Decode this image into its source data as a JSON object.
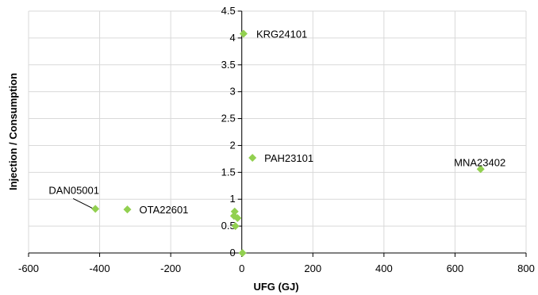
{
  "chart_data": {
    "type": "scatter",
    "title": "",
    "xlabel": "UFG (GJ)",
    "ylabel": "Injection / Consumption",
    "xlim": [
      -600,
      800
    ],
    "ylim": [
      0,
      4.5
    ],
    "x_ticks": [
      -600,
      -400,
      -200,
      0,
      200,
      400,
      600,
      800
    ],
    "y_ticks": [
      0,
      0.5,
      1,
      1.5,
      2,
      2.5,
      3,
      3.5,
      4,
      4.5
    ],
    "grid": "major gridlines on both axes",
    "marker": "diamond",
    "marker_color": "#92d050",
    "points": [
      {
        "x": 5,
        "y": 4.08,
        "label": "KRG24101"
      },
      {
        "x": 30,
        "y": 1.77,
        "label": "PAH23101"
      },
      {
        "x": 672,
        "y": 1.56,
        "label": "MNA23402"
      },
      {
        "x": -412,
        "y": 0.82,
        "label": "DAN05001"
      },
      {
        "x": -322,
        "y": 0.81,
        "label": "OTA22601"
      },
      {
        "x": -20,
        "y": 0.77
      },
      {
        "x": -22,
        "y": 0.69
      },
      {
        "x": -12,
        "y": 0.65
      },
      {
        "x": -18,
        "y": 0.5
      },
      {
        "x": 2,
        "y": 0.0
      }
    ]
  }
}
